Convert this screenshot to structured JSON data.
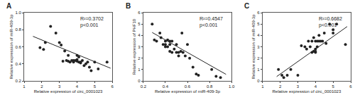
{
  "chart_data": [
    {
      "type": "scatter",
      "title": "A",
      "x_label": "Relative expression of circ_0001023",
      "y_label": "Relative expression of miR-409-3p",
      "xlim": [
        1,
        6
      ],
      "ylim": [
        0.2,
        1.0
      ],
      "xticks": [
        1,
        2,
        3,
        4,
        5,
        6
      ],
      "yticks": [
        0.2,
        0.4,
        0.6,
        0.8,
        {
          "value": 1.0,
          "label": "1.0"
        }
      ],
      "grid": false,
      "annotations": [
        "R²=0.3702\np<0.001"
      ],
      "series": [
        {
          "type": "scatter",
          "marker": "circle",
          "color": "#222222",
          "x": [
            1.9,
            2.1,
            2.2,
            2.5,
            2.8,
            3.0,
            3.1,
            3.2,
            3.3,
            3.4,
            3.5,
            3.5,
            3.6,
            3.7,
            3.8,
            3.8,
            3.9,
            4.0,
            4.0,
            4.0,
            4.1,
            4.1,
            4.2,
            4.2,
            4.3,
            4.4,
            4.5,
            4.6,
            4.7,
            4.8,
            5.0,
            5.2,
            5.7
          ],
          "values": [
            0.59,
            0.57,
            0.65,
            0.84,
            0.76,
            0.65,
            0.62,
            0.43,
            0.55,
            0.44,
            0.5,
            0.43,
            0.42,
            0.44,
            0.44,
            0.42,
            0.44,
            0.5,
            0.45,
            0.43,
            0.48,
            0.42,
            0.42,
            0.41,
            0.44,
            0.38,
            0.4,
            0.42,
            0.36,
            0.32,
            0.42,
            0.34,
            0.42
          ]
        },
        {
          "type": "line",
          "line_style": "solid",
          "color": "#222222",
          "x": [
            1.5,
            5.9
          ],
          "values": [
            0.7225,
            0.3485
          ]
        }
      ]
    },
    {
      "type": "scatter",
      "title": "B",
      "x_label": "Relative expression of miR-409-3p",
      "y_label": "Relative expression of PHF10",
      "xlim": [
        0.2,
        1.0
      ],
      "ylim": [
        0,
        6
      ],
      "xticks": [
        0.2,
        0.4,
        0.6,
        0.8,
        {
          "value": 1.0,
          "label": "1.0"
        }
      ],
      "yticks": [
        0,
        1,
        2,
        3,
        4,
        5,
        6
      ],
      "grid": false,
      "annotations": [
        "R²=0.4547\np<0.001"
      ],
      "series": [
        {
          "type": "scatter",
          "marker": "circle",
          "color": "#222222",
          "x": [
            0.28,
            0.3,
            0.32,
            0.35,
            0.36,
            0.38,
            0.4,
            0.4,
            0.4,
            0.42,
            0.42,
            0.44,
            0.44,
            0.44,
            0.46,
            0.46,
            0.48,
            0.5,
            0.5,
            0.52,
            0.52,
            0.54,
            0.55,
            0.56,
            0.58,
            0.6,
            0.62,
            0.65,
            0.68,
            0.7,
            0.82,
            0.86,
            0.9
          ],
          "values": [
            5.0,
            3.6,
            3.5,
            4.2,
            3.8,
            3.2,
            3.5,
            3.2,
            3.0,
            3.6,
            3.0,
            3.5,
            3.2,
            2.6,
            3.5,
            2.5,
            2.8,
            3.2,
            2.5,
            2.5,
            2.2,
            2.6,
            4.2,
            2.5,
            2.2,
            3.2,
            2.0,
            1.2,
            0.6,
            0.5,
            1.0,
            0.4,
            0.3
          ]
        },
        {
          "type": "line",
          "line_style": "solid",
          "color": "#222222",
          "x": [
            0.28,
            0.95
          ],
          "values": [
            4.26,
            0.575
          ]
        }
      ]
    },
    {
      "type": "scatter",
      "title": "C",
      "x_label": "Relative expression of circ_0001023",
      "y_label": "Relative expression of miR-409-3p",
      "xlim": [
        1,
        6
      ],
      "ylim": [
        0,
        6
      ],
      "xticks": [
        1,
        2,
        3,
        4,
        5,
        6
      ],
      "yticks": [
        0,
        1,
        2,
        3,
        4,
        5,
        6
      ],
      "grid": false,
      "annotations": [
        "R²=0.6682\np<0.001"
      ],
      "series": [
        {
          "type": "scatter",
          "marker": "circle",
          "color": "#222222",
          "x": [
            1.9,
            2.1,
            2.2,
            2.4,
            2.6,
            3.0,
            3.2,
            3.4,
            3.5,
            3.6,
            3.7,
            3.8,
            3.8,
            3.9,
            3.9,
            4.0,
            4.0,
            4.0,
            4.0,
            4.1,
            4.1,
            4.2,
            4.2,
            4.3,
            4.4,
            4.5,
            4.6,
            4.8,
            5.0,
            5.0,
            5.2,
            5.7
          ],
          "values": [
            1.0,
            0.5,
            0.3,
            0.5,
            1.0,
            0.5,
            3.1,
            3.0,
            2.8,
            3.5,
            3.0,
            2.5,
            3.5,
            3.8,
            2.6,
            2.6,
            2.8,
            3.5,
            2.5,
            3.0,
            3.5,
            3.5,
            4.0,
            3.5,
            3.5,
            4.2,
            3.3,
            5.0,
            4.2,
            4.5,
            5.0,
            3.2
          ]
        },
        {
          "type": "line",
          "line_style": "solid",
          "color": "#222222",
          "x": [
            1.8,
            5.8
          ],
          "values": [
            0.38,
            4.78
          ]
        }
      ]
    }
  ]
}
